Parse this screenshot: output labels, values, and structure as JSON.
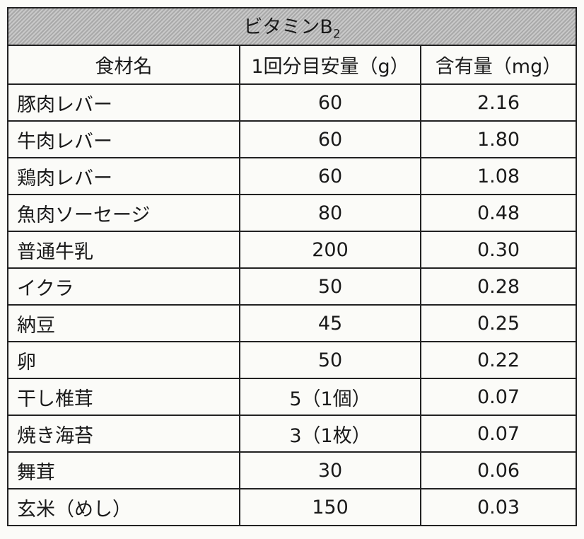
{
  "table": {
    "title": {
      "text": "ビタミンB",
      "sub": "2"
    },
    "headers": [
      "食材名",
      "1回分目安量（g）",
      "含有量（mg）"
    ],
    "rows": [
      [
        "豚肉レバー",
        "60",
        "2.16"
      ],
      [
        "牛肉レバー",
        "60",
        "1.80"
      ],
      [
        "鶏肉レバー",
        "60",
        "1.08"
      ],
      [
        "魚肉ソーセージ",
        "80",
        "0.48"
      ],
      [
        "普通牛乳",
        "200",
        "0.30"
      ],
      [
        "イクラ",
        "50",
        "0.28"
      ],
      [
        "納豆",
        "45",
        "0.25"
      ],
      [
        "卵",
        "50",
        "0.22"
      ],
      [
        "干し椎茸",
        "5（1個）",
        "0.07"
      ],
      [
        "焼き海苔",
        "3（1枚）",
        "0.07"
      ],
      [
        "舞茸",
        "30",
        "0.06"
      ],
      [
        "玄米（めし）",
        "150",
        "0.03"
      ]
    ]
  }
}
